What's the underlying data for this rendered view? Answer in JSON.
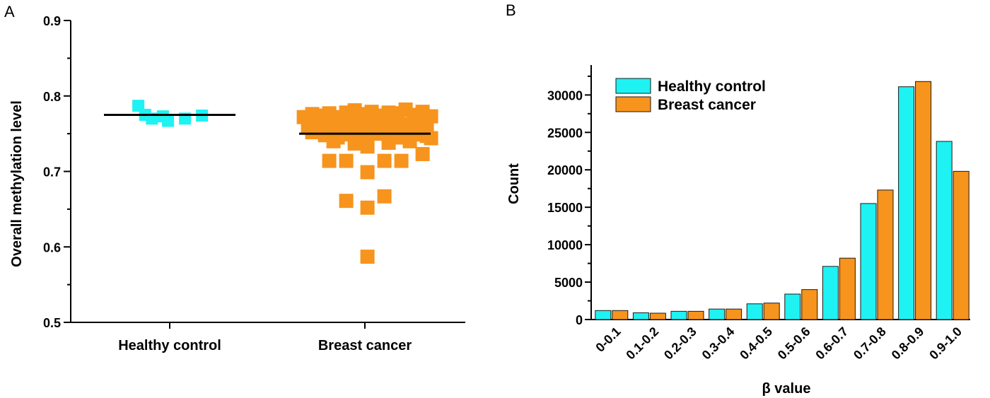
{
  "panel_a": {
    "label": "A"
  },
  "panel_b": {
    "label": "B"
  },
  "colors": {
    "healthy": "#1ef2f2",
    "cancer": "#f7941d",
    "axis": "#000000",
    "bar_edge": "#1a1a1a"
  },
  "chart_data": [
    {
      "type": "scatter",
      "ylabel": "Overall methylation level",
      "xlabel": "",
      "ylim": [
        0.5,
        0.9
      ],
      "yticks": [
        "0.5",
        "0.6",
        "0.7",
        "0.8",
        "0.9"
      ],
      "categories": [
        "Healthy control",
        "Breast cancer"
      ],
      "series": [
        {
          "name": "Healthy control",
          "mean": 0.775,
          "points": [
            {
              "x": -0.37,
              "y": 0.787
            },
            {
              "x": -0.29,
              "y": 0.775
            },
            {
              "x": -0.21,
              "y": 0.77
            },
            {
              "x": -0.08,
              "y": 0.773
            },
            {
              "x": -0.02,
              "y": 0.767
            },
            {
              "x": 0.18,
              "y": 0.77
            },
            {
              "x": 0.38,
              "y": 0.774
            }
          ]
        },
        {
          "name": "Breast cancer",
          "mean": 0.75,
          "points": [
            {
              "x": -0.72,
              "y": 0.772
            },
            {
              "x": -0.62,
              "y": 0.776
            },
            {
              "x": -0.52,
              "y": 0.774
            },
            {
              "x": -0.42,
              "y": 0.777
            },
            {
              "x": -0.32,
              "y": 0.772
            },
            {
              "x": -0.22,
              "y": 0.778
            },
            {
              "x": -0.12,
              "y": 0.781
            },
            {
              "x": -0.02,
              "y": 0.776
            },
            {
              "x": 0.08,
              "y": 0.779
            },
            {
              "x": 0.18,
              "y": 0.774
            },
            {
              "x": 0.28,
              "y": 0.778
            },
            {
              "x": 0.38,
              "y": 0.777
            },
            {
              "x": 0.48,
              "y": 0.782
            },
            {
              "x": 0.58,
              "y": 0.775
            },
            {
              "x": 0.68,
              "y": 0.779
            },
            {
              "x": 0.78,
              "y": 0.773
            },
            {
              "x": -0.67,
              "y": 0.76
            },
            {
              "x": -0.57,
              "y": 0.762
            },
            {
              "x": -0.47,
              "y": 0.758
            },
            {
              "x": -0.37,
              "y": 0.762
            },
            {
              "x": -0.27,
              "y": 0.76
            },
            {
              "x": -0.17,
              "y": 0.765
            },
            {
              "x": -0.07,
              "y": 0.761
            },
            {
              "x": 0.03,
              "y": 0.763
            },
            {
              "x": 0.13,
              "y": 0.76
            },
            {
              "x": 0.23,
              "y": 0.764
            },
            {
              "x": 0.33,
              "y": 0.761
            },
            {
              "x": 0.43,
              "y": 0.763
            },
            {
              "x": 0.53,
              "y": 0.76
            },
            {
              "x": 0.63,
              "y": 0.762
            },
            {
              "x": 0.73,
              "y": 0.758
            },
            {
              "x": -0.62,
              "y": 0.752
            },
            {
              "x": -0.47,
              "y": 0.748
            },
            {
              "x": -0.32,
              "y": 0.745
            },
            {
              "x": -0.17,
              "y": 0.749
            },
            {
              "x": -0.02,
              "y": 0.746
            },
            {
              "x": 0.13,
              "y": 0.75
            },
            {
              "x": 0.28,
              "y": 0.748
            },
            {
              "x": 0.43,
              "y": 0.745
            },
            {
              "x": 0.58,
              "y": 0.749
            },
            {
              "x": 0.73,
              "y": 0.747
            },
            {
              "x": -0.37,
              "y": 0.74
            },
            {
              "x": -0.12,
              "y": 0.737
            },
            {
              "x": 0.03,
              "y": 0.733
            },
            {
              "x": 0.28,
              "y": 0.738
            },
            {
              "x": 0.53,
              "y": 0.74
            },
            {
              "x": 0.78,
              "y": 0.744
            },
            {
              "x": -0.42,
              "y": 0.714
            },
            {
              "x": -0.22,
              "y": 0.714
            },
            {
              "x": 0.23,
              "y": 0.714
            },
            {
              "x": 0.43,
              "y": 0.714
            },
            {
              "x": 0.68,
              "y": 0.723
            },
            {
              "x": 0.03,
              "y": 0.699
            },
            {
              "x": -0.22,
              "y": 0.661
            },
            {
              "x": 0.23,
              "y": 0.667
            },
            {
              "x": 0.03,
              "y": 0.652
            },
            {
              "x": 0.03,
              "y": 0.587
            }
          ]
        }
      ]
    },
    {
      "type": "bar",
      "xlabel": "β value",
      "ylabel": "Count",
      "ylim": [
        0,
        34000
      ],
      "yticks": [
        "0",
        "5000",
        "10000",
        "15000",
        "20000",
        "25000",
        "30000"
      ],
      "categories": [
        "0-0.1",
        "0.1-0.2",
        "0.2-0.3",
        "0.3-0.4",
        "0.4-0.5",
        "0.5-0.6",
        "0.6-0.7",
        "0.7-0.8",
        "0.8-0.9",
        "0.9-1.0"
      ],
      "legend_position": "top-left",
      "series": [
        {
          "name": "Healthy control",
          "values": [
            1200,
            900,
            1100,
            1400,
            2100,
            3400,
            7100,
            15500,
            31100,
            23800
          ]
        },
        {
          "name": "Breast cancer",
          "values": [
            1200,
            850,
            1100,
            1400,
            2200,
            4000,
            8200,
            17300,
            31800,
            19800
          ]
        }
      ]
    }
  ]
}
